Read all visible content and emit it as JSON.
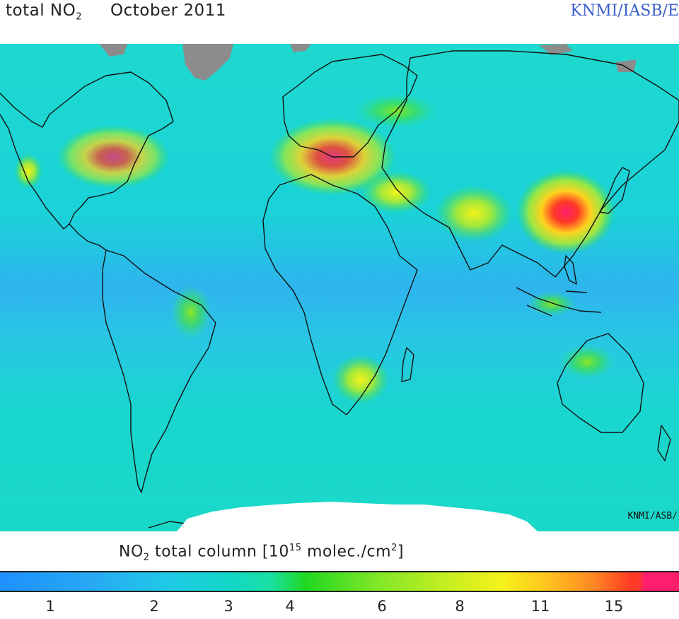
{
  "header": {
    "title_prefix": "total NO",
    "title_sub": "2",
    "title_date": "October 2011",
    "credit": "KNMI/IASB/E"
  },
  "map": {
    "watermark": "KNMI/ASB/",
    "missing_color": "#8c8c8c",
    "no_data_color": "#ffffff",
    "background_color": "#18d7d2"
  },
  "colorbar": {
    "label_prefix": "NO",
    "label_sub": "2",
    "label_mid": " total column [10",
    "label_sup_exp": "15",
    "label_units": " molec./cm",
    "label_sup_unit": "2",
    "label_end": "]",
    "ticks": [
      "1",
      "2",
      "3",
      "4",
      "6",
      "8",
      "11",
      "15"
    ],
    "colors": [
      "#1e90ff",
      "#20c8e8",
      "#18e0a0",
      "#20d820",
      "#c6ee20",
      "#f6f21a",
      "#ff8c22",
      "#ff3a26",
      "#ff1e6e"
    ]
  }
}
